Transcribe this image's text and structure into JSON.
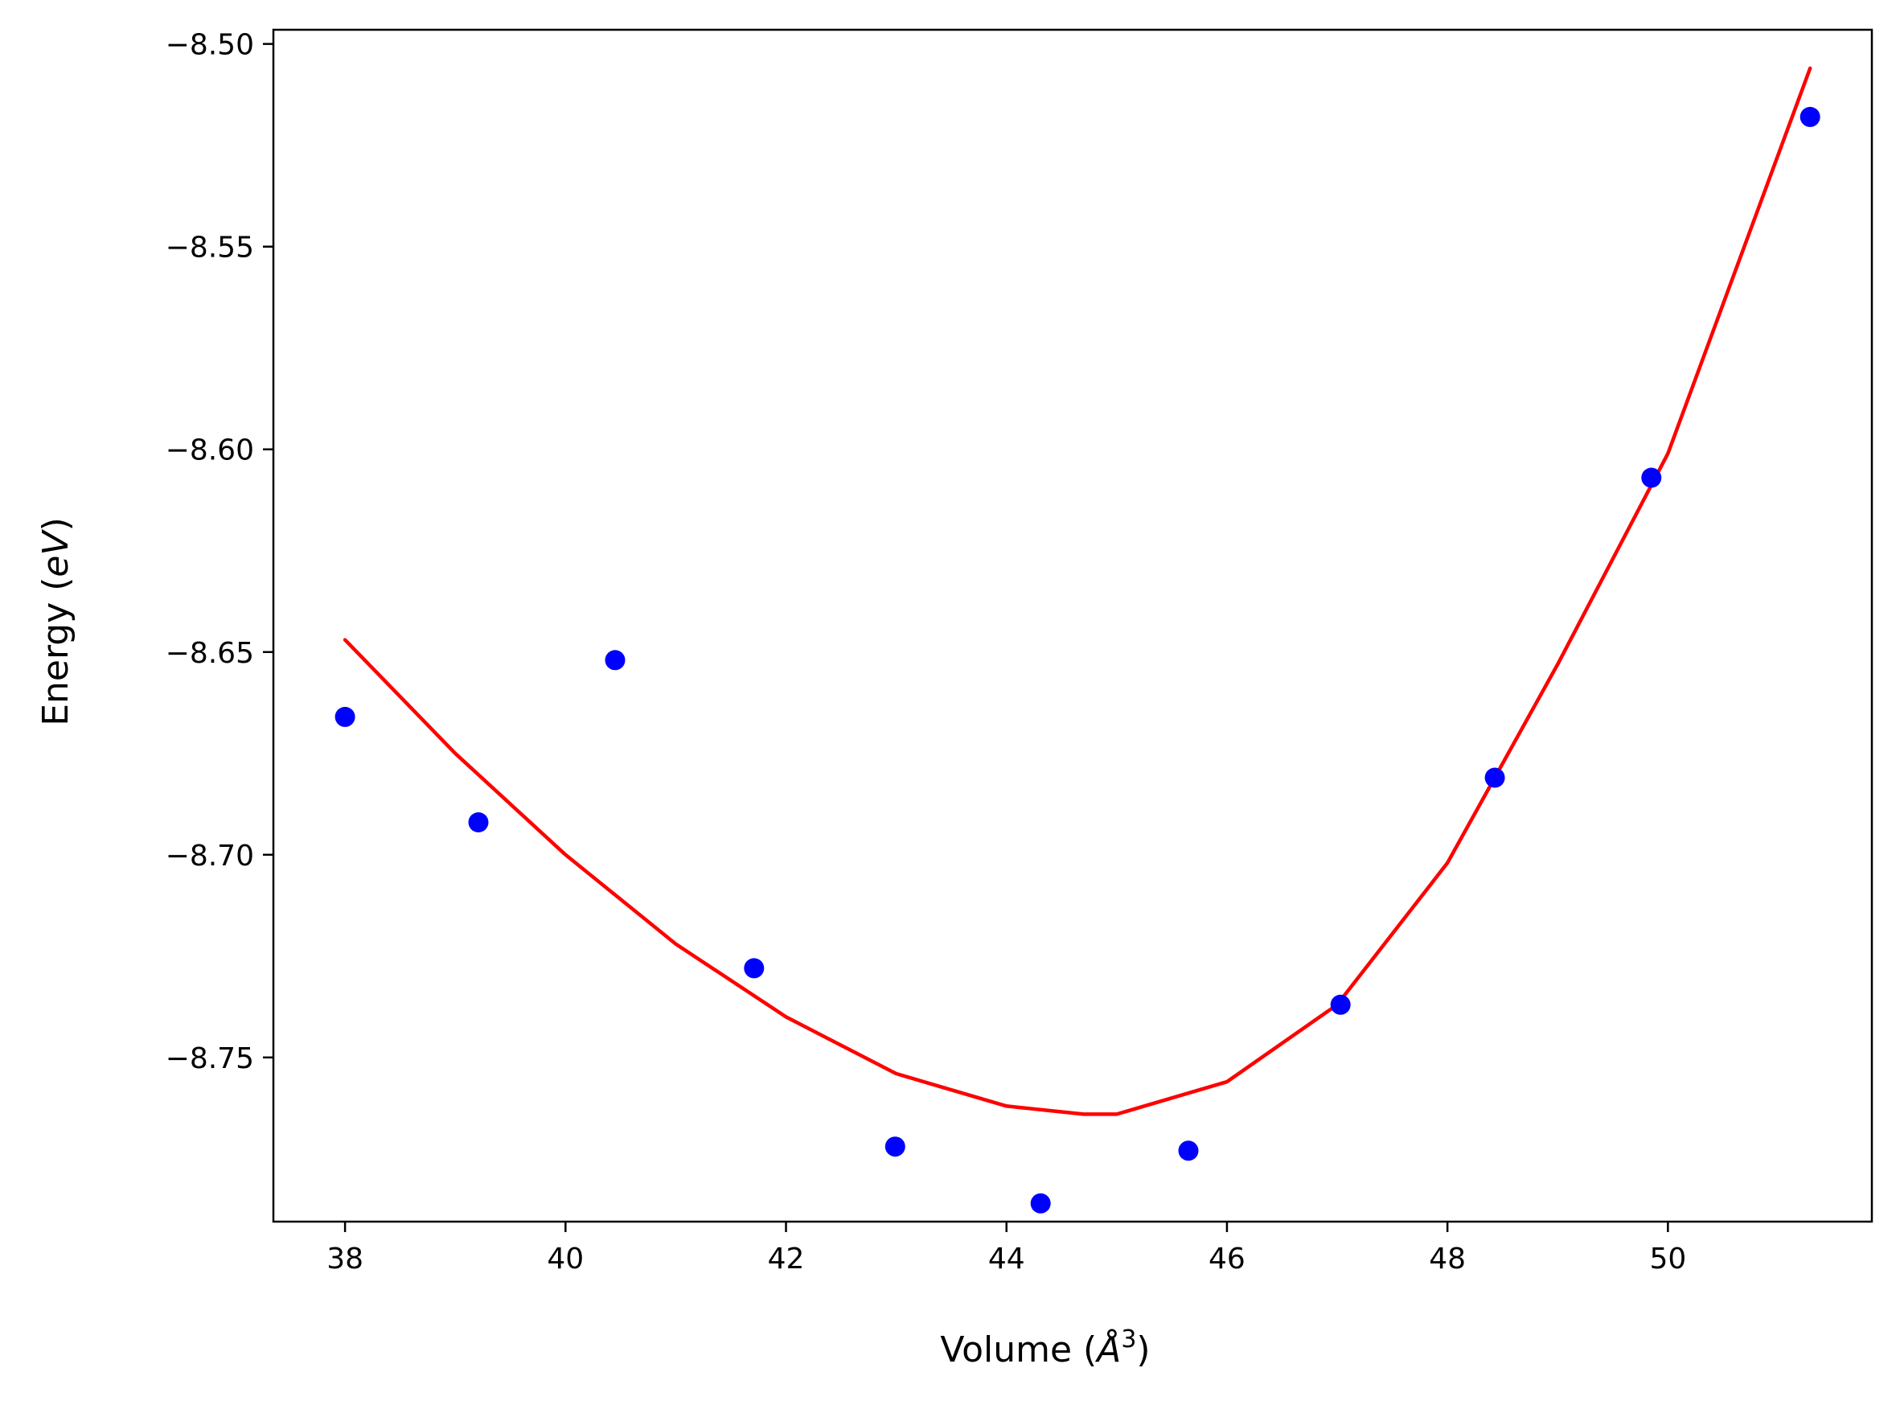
{
  "chart_data": {
    "type": "scatter",
    "xlabel_main": "Volume (",
    "xlabel_sym": "Å",
    "xlabel_sup": "3",
    "xlabel_end": ")",
    "ylabel_main": "Energy (",
    "ylabel_sym": "eV",
    "ylabel_end": ")",
    "xlim": [
      37.35,
      51.85
    ],
    "ylim": [
      -8.7905,
      -8.4965
    ],
    "x_ticks": [
      38,
      40,
      42,
      44,
      46,
      48,
      50
    ],
    "x_tick_labels": [
      "38",
      "40",
      "42",
      "44",
      "46",
      "48",
      "50"
    ],
    "y_ticks": [
      -8.5,
      -8.55,
      -8.6,
      -8.65,
      -8.7,
      -8.75
    ],
    "y_tick_labels": [
      "−8.50",
      "−8.55",
      "−8.60",
      "−8.65",
      "−8.70",
      "−8.75"
    ],
    "grid": false,
    "colors": {
      "points": "#0000ff",
      "fit_line": "#ff0000",
      "axes": "#000000"
    },
    "series": [
      {
        "kind": "scatter",
        "x": [
          38.0,
          39.21,
          40.45,
          41.71,
          42.99,
          44.31,
          45.65,
          47.03,
          48.43,
          49.85,
          51.29
        ],
        "y": [
          -8.666,
          -8.692,
          -8.652,
          -8.728,
          -8.772,
          -8.786,
          -8.773,
          -8.737,
          -8.681,
          -8.607,
          -8.518
        ]
      },
      {
        "kind": "line",
        "x": [
          38.0,
          39.0,
          40.0,
          41.0,
          42.0,
          43.0,
          44.0,
          44.7,
          45.0,
          46.0,
          47.0,
          48.0,
          49.0,
          50.0,
          51.29
        ],
        "y": [
          -8.647,
          -8.675,
          -8.7,
          -8.722,
          -8.74,
          -8.754,
          -8.762,
          -8.764,
          -8.764,
          -8.756,
          -8.737,
          -8.702,
          -8.653,
          -8.601,
          -8.506
        ]
      }
    ]
  }
}
